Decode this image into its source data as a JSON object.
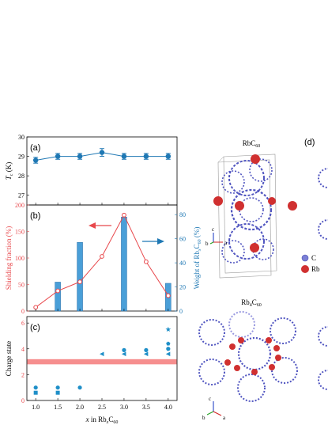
{
  "panels": {
    "a": {
      "label": "(a)",
      "ylabel_main": "T",
      "ylabel_sub": "c",
      "ylabel_unit": " (K)",
      "yticks": [
        "27",
        "28",
        "29",
        "30"
      ]
    },
    "b": {
      "label": "(b)",
      "ylabel_left": "Shielding fraction (%)",
      "ylabel_right_pre": "Weight of Rb",
      "ylabel_right_x": "x",
      "ylabel_right_mid": "C",
      "ylabel_right_sub": "60",
      "ylabel_right_post": " (%)",
      "yticks_left": [
        "0",
        "50",
        "100",
        "150",
        "200"
      ],
      "yticks_right": [
        "0",
        "20",
        "40",
        "60",
        "80"
      ]
    },
    "c": {
      "label": "(c)",
      "ylabel": "Charge state",
      "yticks": [
        "0",
        "2",
        "4",
        "6"
      ]
    },
    "xaxis": {
      "ticks": [
        "1.0",
        "1.5",
        "2.0",
        "2.5",
        "3.0",
        "3.5",
        "4.0"
      ],
      "label_pre": "x",
      "label_mid": " in Rb",
      "label_x": "x",
      "label_c": "C",
      "label_sub": "60"
    },
    "d": {
      "label": "(d)",
      "title_top_pre": "RbC",
      "title_top_sub": "60",
      "title_bottom_pre": "Rb",
      "title_bottom_mid_sub": "4",
      "title_bottom_c": "C",
      "title_bottom_sub": "60",
      "legend": [
        {
          "name": "C",
          "color": "#7b7fd6"
        },
        {
          "name": "Rb",
          "color": "#d03030"
        }
      ],
      "axis_letters": [
        "c",
        "b",
        "a"
      ]
    }
  },
  "chart_data": [
    {
      "type": "line",
      "panel": "a",
      "x": [
        1.0,
        1.5,
        2.0,
        2.5,
        3.0,
        3.5,
        4.0
      ],
      "y": [
        28.8,
        29.0,
        29.0,
        29.2,
        29.0,
        29.0,
        29.0
      ],
      "yerr": [
        0.15,
        0.15,
        0.15,
        0.2,
        0.15,
        0.15,
        0.15
      ],
      "ylim": [
        26.5,
        30.0
      ],
      "xlim": [
        0.8,
        4.2
      ],
      "color": "#1f78b4"
    },
    {
      "type": "line",
      "panel": "b-shielding",
      "x": [
        1.0,
        1.5,
        2.0,
        2.5,
        3.0,
        3.5,
        4.0
      ],
      "y": [
        7,
        38,
        55,
        103,
        181,
        93,
        29
      ],
      "ylim": [
        0,
        200
      ],
      "color": "#e8484c"
    },
    {
      "type": "bar",
      "panel": "b-weight",
      "x": [
        1.5,
        2.0,
        3.0,
        4.0
      ],
      "y": [
        24,
        57,
        78,
        23
      ],
      "ylim": [
        0,
        88
      ],
      "color": "#4a9fd8"
    },
    {
      "type": "scatter",
      "panel": "c",
      "ylim": [
        0,
        6.5
      ],
      "band": [
        2.8,
        3.2
      ],
      "band_color": "#f47a7a",
      "points": [
        {
          "x": 1.0,
          "y": 0.6,
          "marker": "square"
        },
        {
          "x": 1.0,
          "y": 1.0,
          "marker": "circle"
        },
        {
          "x": 1.5,
          "y": 0.6,
          "marker": "square"
        },
        {
          "x": 1.5,
          "y": 1.0,
          "marker": "circle"
        },
        {
          "x": 2.0,
          "y": 1.0,
          "marker": "circle"
        },
        {
          "x": 2.5,
          "y": 3.6,
          "marker": "triangle"
        },
        {
          "x": 3.0,
          "y": 3.6,
          "marker": "triangle"
        },
        {
          "x": 3.0,
          "y": 3.9,
          "marker": "circle"
        },
        {
          "x": 3.5,
          "y": 3.6,
          "marker": "triangle"
        },
        {
          "x": 3.5,
          "y": 3.9,
          "marker": "circle"
        },
        {
          "x": 4.0,
          "y": 3.6,
          "marker": "triangle"
        },
        {
          "x": 4.0,
          "y": 4.0,
          "marker": "circle"
        },
        {
          "x": 4.0,
          "y": 4.4,
          "marker": "pentagon"
        },
        {
          "x": 4.0,
          "y": 5.5,
          "marker": "star"
        }
      ]
    }
  ]
}
